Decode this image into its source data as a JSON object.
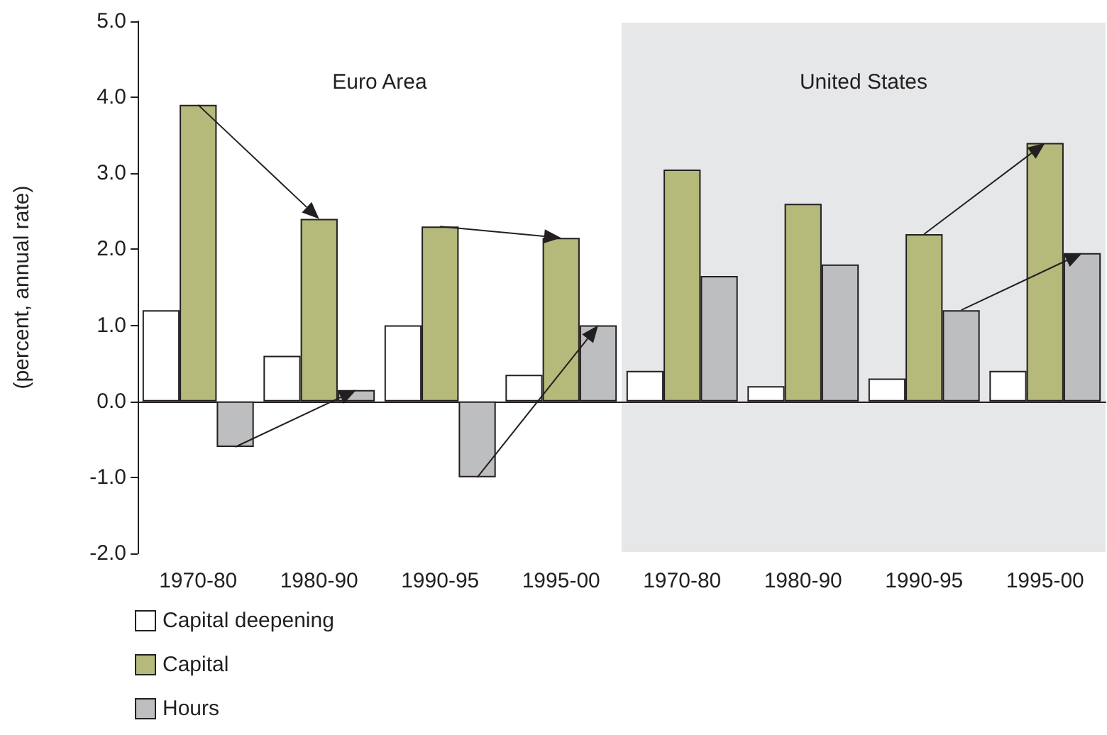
{
  "chart_data": {
    "type": "bar",
    "ylabel": "(percent, annual rate)",
    "categories": [
      "1970-80",
      "1980-90",
      "1990-95",
      "1995-00",
      "1970-80",
      "1980-90",
      "1990-95",
      "1995-00"
    ],
    "series": [
      {
        "name": "Capital deepening",
        "color": "#ffffff",
        "values": [
          1.2,
          0.6,
          1.0,
          0.35,
          0.4,
          0.2,
          0.3,
          0.4
        ]
      },
      {
        "name": "Capital",
        "color": "#b5b97a",
        "values": [
          3.9,
          2.4,
          2.3,
          2.15,
          3.05,
          2.6,
          2.2,
          3.4
        ]
      },
      {
        "name": "Hours",
        "color": "#bcbec0",
        "values": [
          -0.6,
          0.15,
          -1.0,
          1.0,
          1.65,
          1.8,
          1.2,
          1.95
        ]
      }
    ],
    "ylim": [
      -2,
      5
    ],
    "yticks": [
      {
        "value": -2,
        "label": "-2.0"
      },
      {
        "value": -1,
        "label": "-1.0"
      },
      {
        "value": 0,
        "label": "0.0"
      },
      {
        "value": 1,
        "label": "1.0"
      },
      {
        "value": 2,
        "label": "2.0"
      },
      {
        "value": 3,
        "label": "3.0"
      },
      {
        "value": 4,
        "label": "4.0"
      },
      {
        "value": 5,
        "label": "5.0"
      }
    ],
    "annotations": [
      "Euro Area",
      "United States"
    ],
    "legend": "bottom left"
  }
}
